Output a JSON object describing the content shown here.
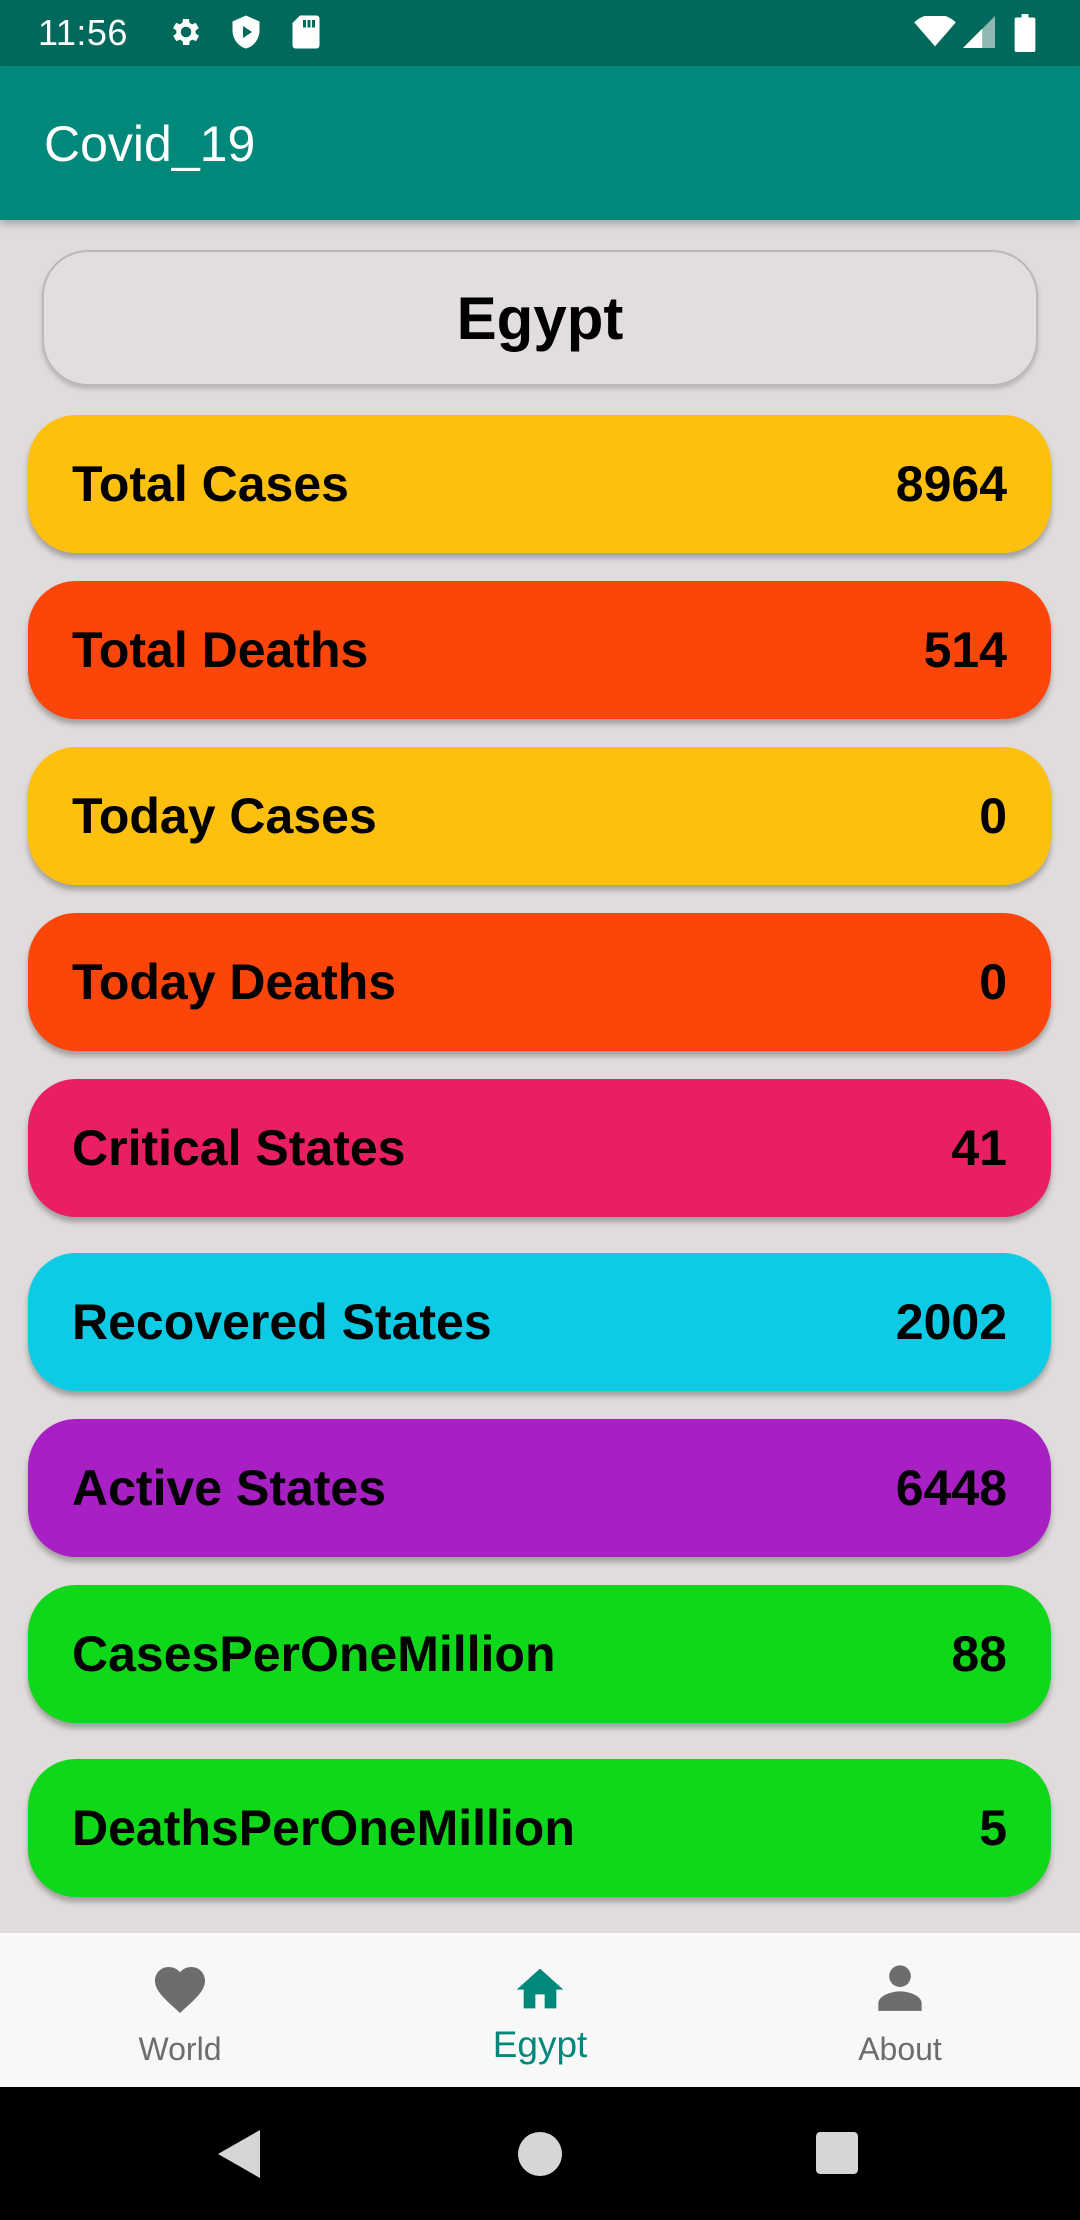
{
  "status_bar": {
    "time": "11:56",
    "icons_left": [
      "settings-icon",
      "shield-icon",
      "sd-card-icon"
    ],
    "icons_right": [
      "wifi-icon",
      "signal-icon",
      "battery-icon"
    ]
  },
  "app_bar": {
    "title": "Covid_19"
  },
  "country_button": {
    "label": "Egypt"
  },
  "stats": [
    {
      "label": "Total Cases",
      "value": "8964",
      "color": "#FEC00F"
    },
    {
      "label": "Total Deaths",
      "value": "514",
      "color": "#FC4509"
    },
    {
      "label": "Today Cases",
      "value": "0",
      "color": "#FEC00F"
    },
    {
      "label": "Today Deaths",
      "value": "0",
      "color": "#FC4509"
    },
    {
      "label": "Critical States",
      "value": "41",
      "color": "#E91E63"
    },
    {
      "label": "Recovered States",
      "value": "2002",
      "color": "#0DCAE5"
    },
    {
      "label": "Active States",
      "value": "6448",
      "color": "#A81FC4"
    },
    {
      "label": "CasesPerOneMillion",
      "value": "88",
      "color": "#0FD81A"
    },
    {
      "label": "DeathsPerOneMillion",
      "value": "5",
      "color": "#0FD81A"
    }
  ],
  "bottom_nav": {
    "items": [
      {
        "label": "World",
        "icon": "heart-icon",
        "active": false
      },
      {
        "label": "Egypt",
        "icon": "home-icon",
        "active": true
      },
      {
        "label": "About",
        "icon": "person-icon",
        "active": false
      }
    ]
  },
  "colors": {
    "primary": "#00897B",
    "primary_dark": "#00695C",
    "background": "#E0DCDC",
    "nav_active": "#00897B",
    "nav_inactive": "#6D6D6D"
  }
}
